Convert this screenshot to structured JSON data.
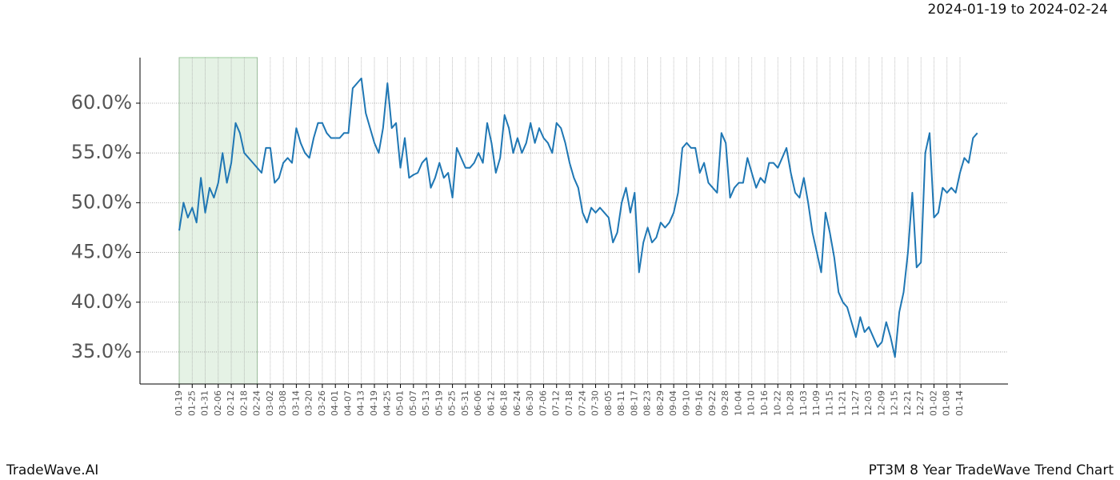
{
  "chart_data": {
    "type": "line",
    "title": "2024-01-19 to 2024-02-24",
    "footer_left": "TradeWave.AI",
    "footer_right": "PT3M 8 Year TradeWave Trend Chart",
    "categories": [
      "01-19",
      null,
      null,
      "01-25",
      null,
      null,
      "01-31",
      null,
      null,
      "02-06",
      null,
      null,
      "02-12",
      null,
      null,
      "02-18",
      null,
      null,
      "02-24",
      null,
      null,
      "03-02",
      null,
      null,
      "03-08",
      null,
      null,
      "03-14",
      null,
      null,
      "03-20",
      null,
      null,
      "03-26",
      null,
      null,
      "04-01",
      null,
      null,
      "04-07",
      null,
      null,
      "04-13",
      null,
      null,
      "04-19",
      null,
      null,
      "04-25",
      null,
      null,
      "05-01",
      null,
      null,
      "05-07",
      null,
      null,
      "05-13",
      null,
      null,
      "05-19",
      null,
      null,
      "05-25",
      null,
      null,
      "05-31",
      null,
      null,
      "06-06",
      null,
      null,
      "06-12",
      null,
      null,
      "06-18",
      null,
      null,
      "06-24",
      null,
      null,
      "06-30",
      null,
      null,
      "07-06",
      null,
      null,
      "07-12",
      null,
      null,
      "07-18",
      null,
      null,
      "07-24",
      null,
      null,
      "07-30",
      null,
      null,
      "08-05",
      null,
      null,
      "08-11",
      null,
      null,
      "08-17",
      null,
      null,
      "08-23",
      null,
      null,
      "08-29",
      null,
      null,
      "09-04",
      null,
      null,
      "09-10",
      null,
      null,
      "09-16",
      null,
      null,
      "09-22",
      null,
      null,
      "09-28",
      null,
      null,
      "10-04",
      null,
      null,
      "10-10",
      null,
      null,
      "10-16",
      null,
      null,
      "10-22",
      null,
      null,
      "10-28",
      null,
      null,
      "11-03",
      null,
      null,
      "11-09",
      null,
      null,
      "11-15",
      null,
      null,
      "11-21",
      null,
      null,
      "11-27",
      null,
      null,
      "12-03",
      null,
      null,
      "12-09",
      null,
      null,
      "12-15",
      null,
      null,
      "12-21",
      null,
      null,
      "12-27",
      null,
      null,
      "01-02",
      null,
      null,
      "01-08",
      null,
      null,
      "01-14",
      null,
      null,
      null,
      null
    ],
    "series": [
      {
        "color": "#1f77b4",
        "values": [
          47.2,
          50.0,
          48.5,
          49.5,
          48.0,
          52.5,
          49.0,
          51.5,
          50.5,
          52.0,
          55.0,
          52.0,
          54.0,
          58.0,
          57.0,
          55.0,
          54.5,
          54.0,
          53.5,
          53.0,
          55.5,
          55.5,
          52.0,
          52.5,
          54.0,
          54.5,
          54.0,
          57.5,
          56.0,
          55.0,
          54.5,
          56.5,
          58.0,
          58.0,
          57.0,
          56.5,
          56.5,
          56.5,
          57.0,
          57.0,
          61.5,
          62.0,
          62.5,
          59.0,
          57.5,
          56.0,
          55.0,
          57.5,
          62.0,
          57.5,
          58.0,
          53.5,
          56.5,
          52.5,
          52.8,
          53.0,
          54.0,
          54.5,
          51.5,
          52.5,
          54.0,
          52.5,
          53.0,
          50.5,
          55.5,
          54.5,
          53.5,
          53.5,
          54.0,
          55.0,
          54.0,
          58.0,
          56.0,
          53.0,
          54.5,
          58.8,
          57.5,
          55.0,
          56.5,
          55.0,
          56.0,
          58.0,
          56.0,
          57.5,
          56.5,
          56.0,
          55.0,
          58.0,
          57.5,
          56.0,
          54.0,
          52.5,
          51.5,
          49.0,
          48.0,
          49.5,
          49.0,
          49.5,
          49.0,
          48.5,
          46.0,
          47.0,
          50.0,
          51.5,
          49.0,
          51.0,
          43.0,
          46.0,
          47.5,
          46.0,
          46.5,
          48.0,
          47.5,
          48.0,
          49.0,
          51.0,
          55.5,
          56.0,
          55.5,
          55.5,
          53.0,
          54.0,
          52.0,
          51.5,
          51.0,
          57.0,
          56.0,
          50.5,
          51.5,
          52.0,
          52.0,
          54.5,
          53.0,
          51.5,
          52.5,
          52.0,
          54.0,
          54.0,
          53.5,
          54.5,
          55.5,
          53.0,
          51.0,
          50.5,
          52.5,
          50.0,
          47.0,
          45.0,
          43.0,
          49.0,
          47.0,
          44.5,
          41.0,
          40.0,
          39.5,
          38.0,
          36.5,
          38.5,
          37.0,
          37.5,
          36.5,
          35.5,
          36.0,
          38.0,
          36.5,
          34.5,
          39.0,
          41.0,
          45.0,
          51.0,
          43.5,
          44.0,
          55.0,
          57.0,
          48.5,
          49.0,
          51.5,
          51.0,
          51.5,
          51.0,
          53.0,
          54.5,
          54.0,
          56.5,
          57.0
        ]
      }
    ],
    "highlight": {
      "from": "01-19",
      "to": "02-24",
      "color": "#e5f2e5"
    },
    "ylim": [
      31.78,
      64.58
    ],
    "yticks": [
      {
        "value": 35,
        "label": "35.0%"
      },
      {
        "value": 40,
        "label": "40.0%"
      },
      {
        "value": 45,
        "label": "45.0%"
      },
      {
        "value": 50,
        "label": "50.0%"
      },
      {
        "value": 55,
        "label": "55.0%"
      },
      {
        "value": 60,
        "label": "60.0%"
      }
    ],
    "grid": true
  }
}
